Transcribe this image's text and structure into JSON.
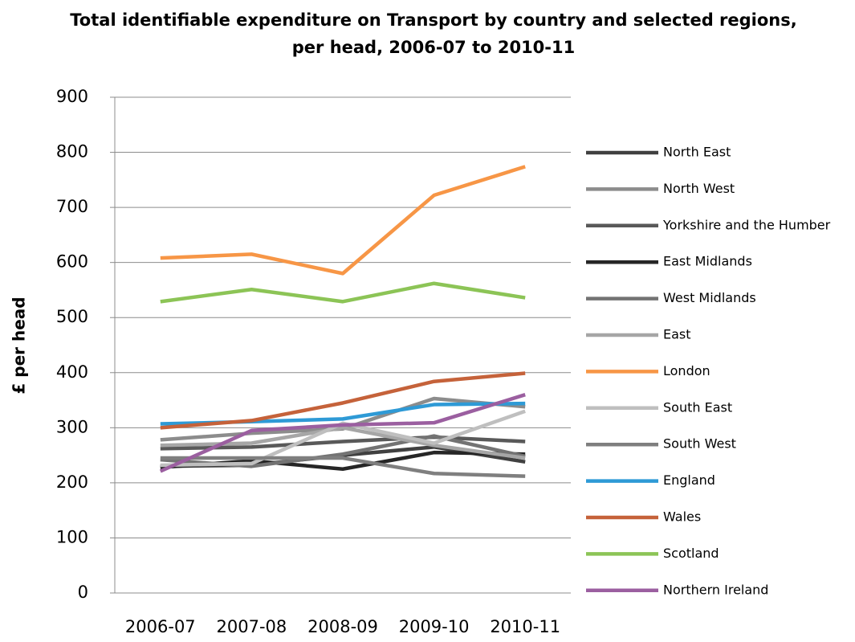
{
  "chart_data": {
    "type": "line",
    "title": "Total identifiable expenditure on Transport by country and selected regions, per head, 2006-07 to 2010-11",
    "ylabel": "£ per head",
    "categories": [
      "2006-07",
      "2007-08",
      "2008-09",
      "2009-10",
      "2010-11"
    ],
    "ylim": [
      0,
      900
    ],
    "yticks": [
      0,
      100,
      200,
      300,
      400,
      500,
      600,
      700,
      800,
      900
    ],
    "grid": true,
    "legend": "right",
    "series": [
      {
        "name": "North East",
        "color": "#404040",
        "values": [
          230,
          232,
          250,
          265,
          238
        ]
      },
      {
        "name": "North West",
        "color": "#8c8c8c",
        "values": [
          278,
          290,
          298,
          353,
          338
        ]
      },
      {
        "name": "Yorkshire and the Humber",
        "color": "#595959",
        "values": [
          262,
          265,
          275,
          283,
          275
        ]
      },
      {
        "name": "East Midlands",
        "color": "#262626",
        "values": [
          228,
          240,
          225,
          255,
          252
        ]
      },
      {
        "name": "West Midlands",
        "color": "#737373",
        "values": [
          242,
          230,
          252,
          285,
          248
        ]
      },
      {
        "name": "East",
        "color": "#a6a6a6",
        "values": [
          268,
          272,
          300,
          268,
          245
        ]
      },
      {
        "name": "London",
        "color": "#f79646",
        "values": [
          608,
          615,
          580,
          722,
          774
        ]
      },
      {
        "name": "South East",
        "color": "#bfbfbf",
        "values": [
          232,
          235,
          308,
          272,
          330
        ]
      },
      {
        "name": "South West",
        "color": "#7f7f7f",
        "values": [
          245,
          245,
          245,
          217,
          212
        ]
      },
      {
        "name": "England",
        "color": "#2e9ad6",
        "values": [
          307,
          311,
          316,
          342,
          344
        ]
      },
      {
        "name": "Wales",
        "color": "#c5623a",
        "values": [
          300,
          313,
          345,
          384,
          399
        ]
      },
      {
        "name": "Scotland",
        "color": "#8cc456",
        "values": [
          529,
          551,
          529,
          562,
          536
        ]
      },
      {
        "name": "Northern Ireland",
        "color": "#9b5fa0",
        "values": [
          221,
          295,
          305,
          309,
          360
        ]
      }
    ]
  }
}
